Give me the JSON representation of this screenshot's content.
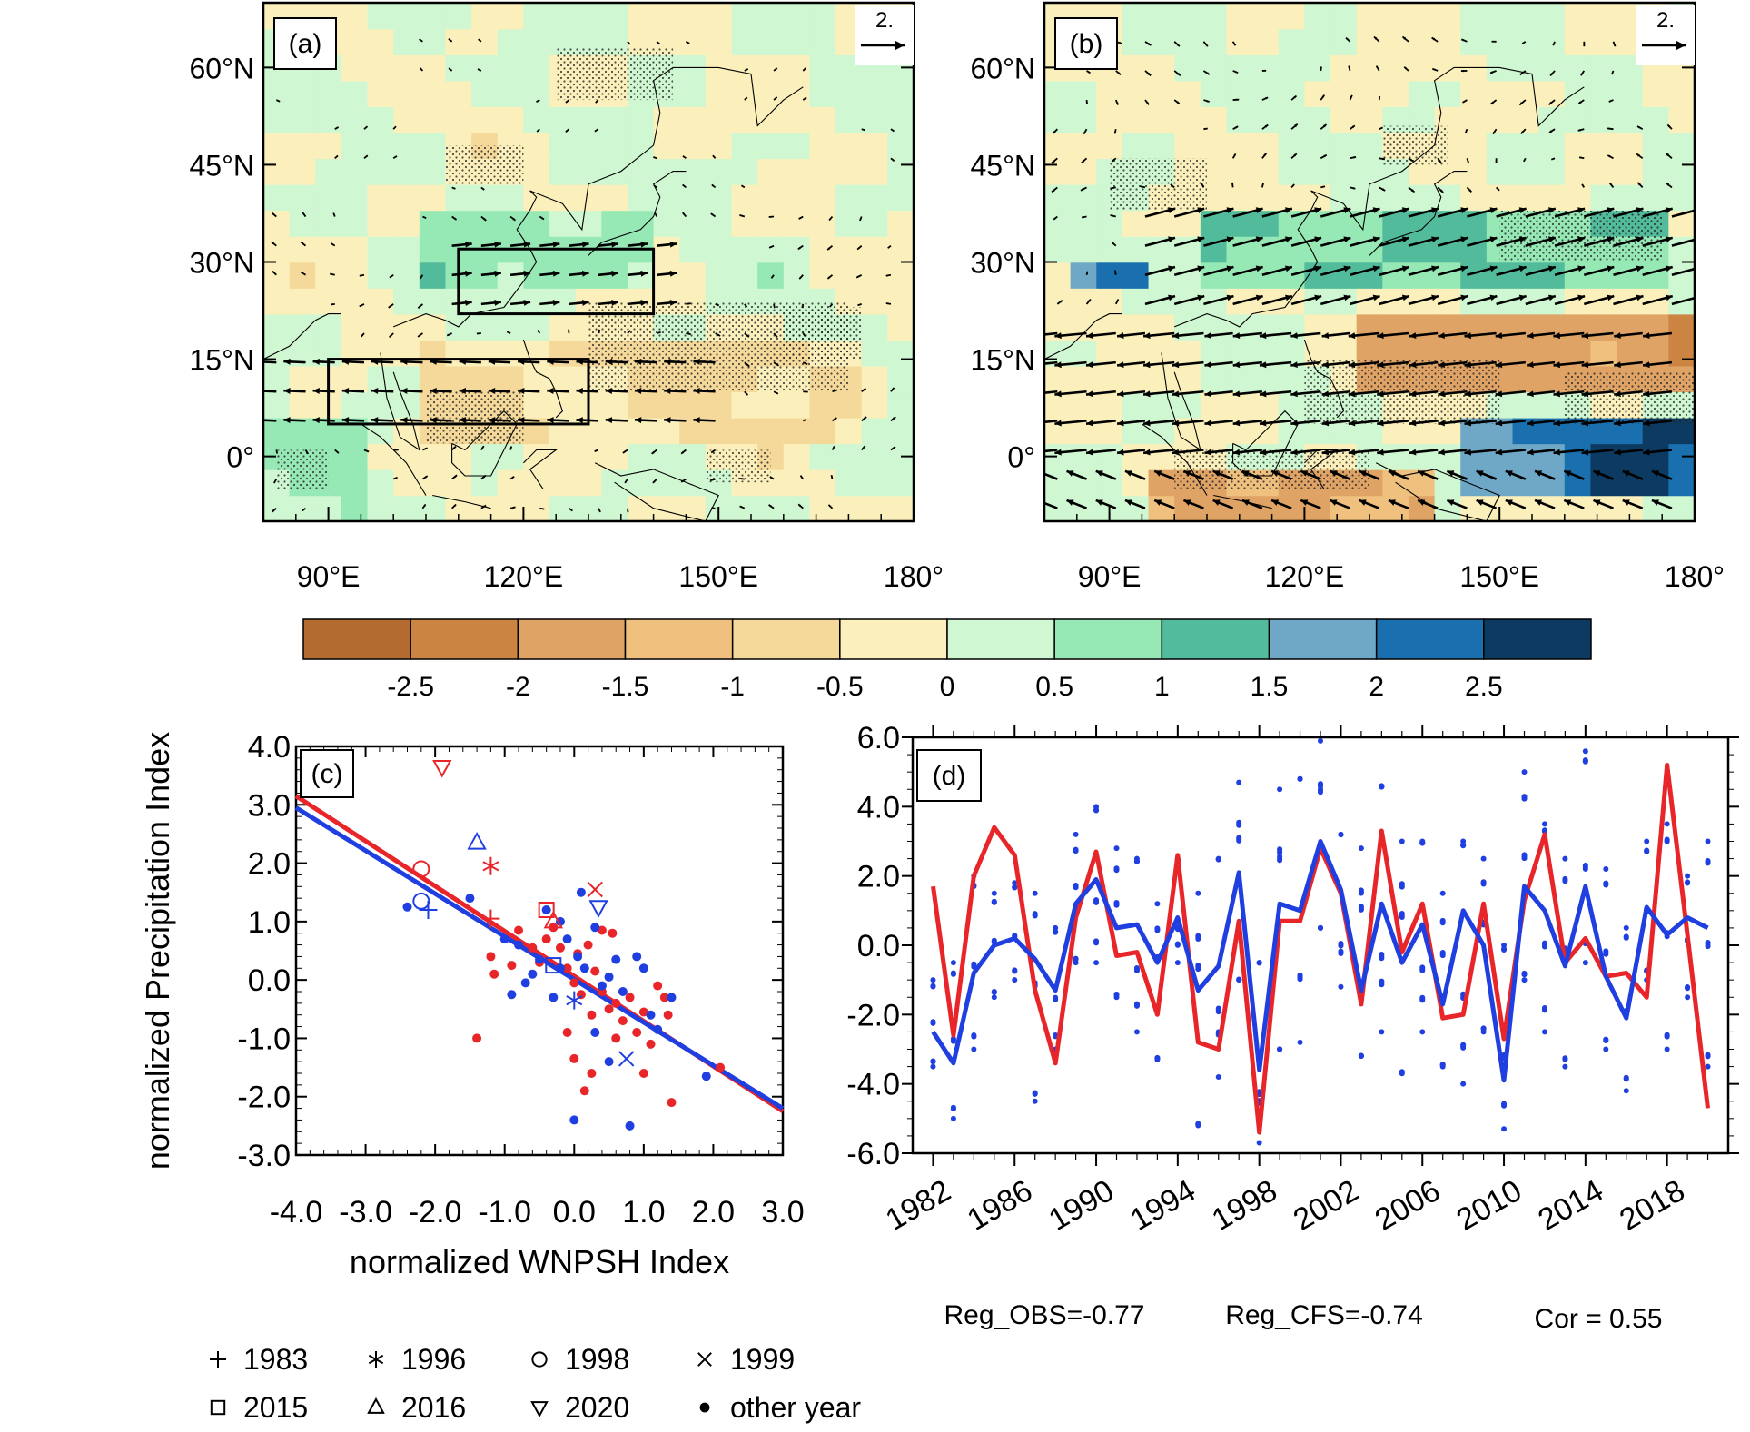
{
  "colors": {
    "red": "#e8262a",
    "blue": "#1f3fe0",
    "colorbar": [
      "#b36b2f",
      "#cc8443",
      "#dfa366",
      "#efc07e",
      "#f5d99a",
      "#fbf0bc",
      "#cff7d1",
      "#96e8b5",
      "#52bb9b",
      "#6ea8c6",
      "#1a6fae",
      "#0c3a60"
    ]
  },
  "colorbar": {
    "labels": [
      "-2.5",
      "-2",
      "-1.5",
      "-1",
      "-0.5",
      "0",
      "0.5",
      "1",
      "1.5",
      "2",
      "2.5"
    ]
  },
  "chart_data": [
    {
      "id": "a",
      "type": "heatmap",
      "panel_label": "(a)",
      "reference_vector": "2.",
      "lat_labels": [
        "60°N",
        "45°N",
        "30°N",
        "15°N",
        "0°"
      ],
      "lon_labels": [
        "90°E",
        "120°E",
        "150°E",
        "180°"
      ],
      "xlim": [
        80,
        180
      ],
      "ylim": [
        -10,
        70
      ],
      "boxes": [
        {
          "lon": [
            110,
            140
          ],
          "lat": [
            22,
            32
          ]
        },
        {
          "lon": [
            90,
            130
          ],
          "lat": [
            5,
            15
          ]
        }
      ]
    },
    {
      "id": "b",
      "type": "heatmap",
      "panel_label": "(b)",
      "reference_vector": "2.",
      "lat_labels": [
        "60°N",
        "45°N",
        "30°N",
        "15°N",
        "0°"
      ],
      "lon_labels": [
        "90°E",
        "120°E",
        "150°E",
        "180°"
      ],
      "xlim": [
        80,
        180
      ],
      "ylim": [
        -10,
        70
      ]
    },
    {
      "id": "c",
      "type": "scatter",
      "panel_label": "(c)",
      "xlabel": "normalized WNPSH Index",
      "ylabel": "normalized Precipitation Index",
      "xlim": [
        -4,
        3
      ],
      "ylim": [
        -3,
        4
      ],
      "xticks": [
        "-4.0",
        "-3.0",
        "-2.0",
        "-1.0",
        "0.0",
        "1.0",
        "2.0",
        "3.0"
      ],
      "yticks": [
        "4.0",
        "3.0",
        "2.0",
        "1.0",
        "0.0",
        "-1.0",
        "-2.0",
        "-3.0"
      ],
      "fit_lines": [
        {
          "name": "red",
          "x": [
            -4,
            3
          ],
          "y": [
            3.15,
            -2.25
          ]
        },
        {
          "name": "blue",
          "x": [
            -4,
            3
          ],
          "y": [
            2.95,
            -2.2
          ]
        }
      ],
      "special_years": {
        "red": [
          {
            "year": "1983",
            "marker": "plus",
            "x": -1.2,
            "y": 1.05
          },
          {
            "year": "1996",
            "marker": "asterisk",
            "x": -1.2,
            "y": 1.95
          },
          {
            "year": "1998",
            "marker": "circle",
            "x": -2.2,
            "y": 1.9
          },
          {
            "year": "1999",
            "marker": "cross",
            "x": 0.3,
            "y": 1.55
          },
          {
            "year": "2015",
            "marker": "square",
            "x": -0.4,
            "y": 1.2
          },
          {
            "year": "2016",
            "marker": "triangle",
            "x": -0.3,
            "y": 1.0
          },
          {
            "year": "2020",
            "marker": "triangle-down",
            "x": -1.9,
            "y": 3.65
          }
        ],
        "blue": [
          {
            "year": "1983",
            "marker": "plus",
            "x": -2.1,
            "y": 1.2
          },
          {
            "year": "1996",
            "marker": "asterisk",
            "x": 0.0,
            "y": -0.35
          },
          {
            "year": "1998",
            "marker": "circle",
            "x": -2.2,
            "y": 1.35
          },
          {
            "year": "1999",
            "marker": "cross",
            "x": 0.75,
            "y": -1.35
          },
          {
            "year": "2015",
            "marker": "square",
            "x": -0.3,
            "y": 0.25
          },
          {
            "year": "2016",
            "marker": "triangle",
            "x": -1.4,
            "y": 2.35
          },
          {
            "year": "2020",
            "marker": "triangle-down",
            "x": 0.35,
            "y": 1.25
          }
        ]
      },
      "other_years": {
        "red": [
          [
            -1.4,
            -1.0
          ],
          [
            -1.2,
            0.4
          ],
          [
            -1.15,
            0.1
          ],
          [
            -0.9,
            0.25
          ],
          [
            -0.8,
            0.85
          ],
          [
            -0.6,
            0.55
          ],
          [
            -0.5,
            0.3
          ],
          [
            -0.4,
            0.7
          ],
          [
            -0.2,
            0.55
          ],
          [
            -0.1,
            0.2
          ],
          [
            0.0,
            -0.05
          ],
          [
            0.05,
            0.45
          ],
          [
            0.1,
            -0.25
          ],
          [
            0.2,
            0.6
          ],
          [
            0.25,
            -0.6
          ],
          [
            0.3,
            0.15
          ],
          [
            0.4,
            -0.2
          ],
          [
            0.5,
            -0.5
          ],
          [
            0.55,
            0.8
          ],
          [
            0.6,
            -0.4
          ],
          [
            0.7,
            -0.7
          ],
          [
            0.8,
            -0.3
          ],
          [
            0.9,
            -0.9
          ],
          [
            1.0,
            -0.55
          ],
          [
            1.1,
            -1.1
          ],
          [
            1.2,
            -0.1
          ],
          [
            1.3,
            -0.3
          ],
          [
            1.35,
            -0.6
          ],
          [
            1.4,
            -2.1
          ],
          [
            0.0,
            -1.35
          ],
          [
            -0.1,
            -0.9
          ],
          [
            0.25,
            -1.6
          ],
          [
            0.6,
            -1.0
          ],
          [
            1.0,
            -1.6
          ],
          [
            -0.3,
            0.9
          ],
          [
            0.4,
            0.85
          ],
          [
            2.1,
            -1.5
          ],
          [
            0.15,
            -1.9
          ]
        ],
        "blue": [
          [
            -2.4,
            1.25
          ],
          [
            -1.5,
            1.4
          ],
          [
            -1.0,
            0.7
          ],
          [
            -0.9,
            -0.25
          ],
          [
            -0.7,
            -0.05
          ],
          [
            -0.6,
            0.1
          ],
          [
            -0.5,
            0.35
          ],
          [
            -0.4,
            1.2
          ],
          [
            -0.3,
            -0.3
          ],
          [
            -0.2,
            0.2
          ],
          [
            -0.1,
            0.7
          ],
          [
            0.0,
            -2.4
          ],
          [
            0.05,
            0.4
          ],
          [
            0.1,
            1.5
          ],
          [
            0.15,
            0.2
          ],
          [
            0.3,
            -0.9
          ],
          [
            0.4,
            -0.1
          ],
          [
            0.5,
            0.05
          ],
          [
            0.6,
            0.35
          ],
          [
            0.7,
            -0.2
          ],
          [
            0.8,
            -2.5
          ],
          [
            1.0,
            0.2
          ],
          [
            1.1,
            -0.6
          ],
          [
            1.2,
            -0.85
          ],
          [
            1.4,
            -0.3
          ],
          [
            1.9,
            -1.65
          ],
          [
            0.3,
            0.9
          ],
          [
            -0.8,
            0.6
          ],
          [
            0.9,
            0.4
          ],
          [
            -0.2,
            1.0
          ],
          [
            0.5,
            -1.4
          ]
        ]
      },
      "legend": [
        {
          "marker": "plus",
          "label": "1983"
        },
        {
          "marker": "asterisk",
          "label": "1996"
        },
        {
          "marker": "circle",
          "label": "1998"
        },
        {
          "marker": "cross",
          "label": "1999"
        },
        {
          "marker": "square",
          "label": "2015"
        },
        {
          "marker": "triangle",
          "label": "2016"
        },
        {
          "marker": "triangle-down",
          "label": "2020"
        },
        {
          "marker": "dot",
          "label": "other year"
        }
      ]
    },
    {
      "id": "d",
      "type": "line",
      "panel_label": "(d)",
      "xlim": [
        1981,
        2021
      ],
      "ylim": [
        -6,
        6
      ],
      "x": [
        1982,
        1983,
        1984,
        1985,
        1986,
        1987,
        1988,
        1989,
        1990,
        1991,
        1992,
        1993,
        1994,
        1995,
        1996,
        1997,
        1998,
        1999,
        2000,
        2001,
        2002,
        2003,
        2004,
        2005,
        2006,
        2007,
        2008,
        2009,
        2010,
        2011,
        2012,
        2013,
        2014,
        2015,
        2016,
        2017,
        2018,
        2019,
        2020
      ],
      "xtick_labels": [
        "1982",
        "1986",
        "1990",
        "1994",
        "1998",
        "2002",
        "2006",
        "2010",
        "2014",
        "2018"
      ],
      "xtick_values": [
        1982,
        1986,
        1990,
        1994,
        1998,
        2002,
        2006,
        2010,
        2014,
        2018
      ],
      "ytick_labels": [
        "6.0",
        "4.0",
        "2.0",
        "0.0",
        "-2.0",
        "-4.0",
        "-6.0"
      ],
      "series": [
        {
          "color": "red",
          "values": [
            1.7,
            -2.6,
            2.0,
            3.4,
            2.6,
            -1.3,
            -3.4,
            0.8,
            2.7,
            -0.3,
            -0.2,
            -2.0,
            2.6,
            -2.8,
            -3.0,
            0.7,
            -5.4,
            0.7,
            0.7,
            2.8,
            1.5,
            -1.7,
            3.3,
            -0.2,
            1.2,
            -2.1,
            -2.0,
            1.2,
            -2.7,
            1.3,
            3.2,
            -0.5,
            0.2,
            -0.9,
            -0.8,
            -1.5,
            5.2,
            0.3,
            -4.7
          ]
        },
        {
          "color": "blue",
          "values": [
            -2.5,
            -3.4,
            -0.8,
            0.0,
            0.2,
            -0.4,
            -1.3,
            1.2,
            1.9,
            0.5,
            0.6,
            -0.5,
            0.8,
            -1.3,
            -0.6,
            2.1,
            -3.6,
            1.2,
            1.0,
            3.0,
            1.6,
            -1.3,
            1.2,
            -0.5,
            0.6,
            -1.7,
            1.0,
            0.0,
            -3.9,
            1.7,
            1.0,
            -0.6,
            1.7,
            -0.9,
            -2.1,
            1.1,
            0.3,
            0.8,
            0.5
          ]
        }
      ],
      "ensemble_spread": [
        [
          -3.5,
          -1.0
        ],
        [
          -5.0,
          -0.5
        ],
        [
          -3.0,
          2.0
        ],
        [
          -1.5,
          1.5
        ],
        [
          -1.0,
          1.8
        ],
        [
          -4.5,
          1.5
        ],
        [
          -3.0,
          0.5
        ],
        [
          -0.5,
          3.2
        ],
        [
          -0.5,
          4.0
        ],
        [
          -1.5,
          2.8
        ],
        [
          -2.5,
          2.5
        ],
        [
          -3.3,
          1.2
        ],
        [
          -0.5,
          2.5
        ],
        [
          -5.2,
          1.5
        ],
        [
          -3.8,
          2.5
        ],
        [
          -1.0,
          4.7
        ],
        [
          -5.7,
          -0.5
        ],
        [
          -3.0,
          4.5
        ],
        [
          -2.8,
          4.8
        ],
        [
          0.5,
          5.9
        ],
        [
          -1.2,
          3.2
        ],
        [
          -3.2,
          2.8
        ],
        [
          -2.5,
          4.6
        ],
        [
          -3.7,
          3.0
        ],
        [
          -2.5,
          3.0
        ],
        [
          -3.5,
          1.5
        ],
        [
          -4.0,
          3.0
        ],
        [
          -2.5,
          2.5
        ],
        [
          -5.3,
          0.0
        ],
        [
          -1.0,
          5.0
        ],
        [
          -2.5,
          3.5
        ],
        [
          -3.5,
          2.5
        ],
        [
          -0.5,
          5.6
        ],
        [
          -3.0,
          2.2
        ],
        [
          -4.2,
          0.5
        ],
        [
          -1.0,
          3.0
        ],
        [
          -3.0,
          3.5
        ],
        [
          -1.5,
          2.0
        ],
        [
          -3.5,
          3.0
        ]
      ],
      "annotations": [
        "Reg_OBS=-0.77",
        "Reg_CFS=-0.74",
        "Cor = 0.55"
      ]
    }
  ]
}
